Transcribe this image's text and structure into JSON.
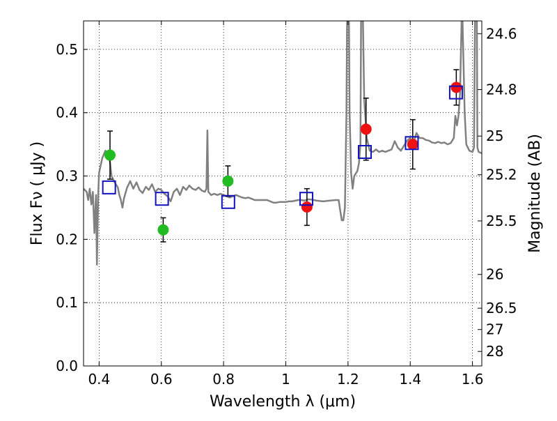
{
  "chart_data": {
    "type": "scatter",
    "title": "",
    "xlabel": "Wavelength  λ (μm)",
    "ylabel": "Flux  Fν  ( μJy )",
    "ylabel_right": "Magnitude (AB)",
    "xlim": [
      0.35,
      1.63
    ],
    "ylim": [
      0.0,
      0.545
    ],
    "x_ticks": [
      0.4,
      0.6,
      0.8,
      1.0,
      1.2,
      1.4,
      1.6
    ],
    "x_tick_labels": [
      "0.4",
      "0.6",
      "0.8",
      "1",
      "1.2",
      "1.4",
      "1.6"
    ],
    "y_ticks": [
      0.0,
      0.1,
      0.2,
      0.3,
      0.4,
      0.5
    ],
    "y_tick_labels": [
      "0.0",
      "0.1",
      "0.2",
      "0.3",
      "0.4",
      "0.5"
    ],
    "right_ticks": [
      {
        "mag": 24.6,
        "label": "24.6"
      },
      {
        "mag": 24.8,
        "label": "24.8"
      },
      {
        "mag": 25.0,
        "label": "25"
      },
      {
        "mag": 25.2,
        "label": "25.2"
      },
      {
        "mag": 25.5,
        "label": "25.5"
      },
      {
        "mag": 26.0,
        "label": "26"
      },
      {
        "mag": 26.5,
        "label": "26.5"
      },
      {
        "mag": 27.0,
        "label": "27"
      },
      {
        "mag": 28.0,
        "label": "28"
      }
    ],
    "grid": true,
    "colors": {
      "observed_optical": "#22bb22",
      "observed_nir": "#ee1111",
      "model": "#1111bb",
      "spectrum": "#808080",
      "errorbar": "#000000"
    },
    "series": [
      {
        "marker": "circle",
        "color": "#22bb22",
        "points": [
          {
            "x": 0.435,
            "y": 0.333,
            "err": 0.038
          },
          {
            "x": 0.606,
            "y": 0.215,
            "err": 0.019
          },
          {
            "x": 0.814,
            "y": 0.292,
            "err": 0.024
          }
        ]
      },
      {
        "marker": "circle",
        "color": "#ee1111",
        "points": [
          {
            "x": 1.068,
            "y": 0.251,
            "err": 0.029
          },
          {
            "x": 1.258,
            "y": 0.374,
            "err": 0.049
          },
          {
            "x": 1.408,
            "y": 0.35,
            "err": 0.039
          },
          {
            "x": 1.548,
            "y": 0.44,
            "err": 0.028
          }
        ]
      },
      {
        "marker": "open-square",
        "color": "#1111bb",
        "points": [
          {
            "x": 0.432,
            "y": 0.282
          },
          {
            "x": 0.602,
            "y": 0.264
          },
          {
            "x": 0.815,
            "y": 0.259
          },
          {
            "x": 1.066,
            "y": 0.264
          },
          {
            "x": 1.254,
            "y": 0.338
          },
          {
            "x": 1.405,
            "y": 0.352
          },
          {
            "x": 1.547,
            "y": 0.432
          }
        ]
      },
      {
        "marker": "line",
        "color": "#808080",
        "points": [
          [
            0.35,
            0.28
          ],
          [
            0.36,
            0.275
          ],
          [
            0.365,
            0.262
          ],
          [
            0.37,
            0.28
          ],
          [
            0.375,
            0.255
          ],
          [
            0.38,
            0.275
          ],
          [
            0.385,
            0.21
          ],
          [
            0.39,
            0.27
          ],
          [
            0.393,
            0.16
          ],
          [
            0.397,
            0.27
          ],
          [
            0.4,
            0.305
          ],
          [
            0.41,
            0.328
          ],
          [
            0.42,
            0.34
          ],
          [
            0.43,
            0.332
          ],
          [
            0.435,
            0.322
          ],
          [
            0.44,
            0.3
          ],
          [
            0.45,
            0.29
          ],
          [
            0.46,
            0.282
          ],
          [
            0.465,
            0.27
          ],
          [
            0.47,
            0.262
          ],
          [
            0.475,
            0.25
          ],
          [
            0.48,
            0.265
          ],
          [
            0.49,
            0.282
          ],
          [
            0.5,
            0.292
          ],
          [
            0.51,
            0.28
          ],
          [
            0.52,
            0.29
          ],
          [
            0.53,
            0.278
          ],
          [
            0.54,
            0.273
          ],
          [
            0.55,
            0.283
          ],
          [
            0.56,
            0.278
          ],
          [
            0.57,
            0.287
          ],
          [
            0.58,
            0.275
          ],
          [
            0.59,
            0.28
          ],
          [
            0.6,
            0.278
          ],
          [
            0.61,
            0.272
          ],
          [
            0.62,
            0.268
          ],
          [
            0.63,
            0.26
          ],
          [
            0.64,
            0.275
          ],
          [
            0.65,
            0.28
          ],
          [
            0.66,
            0.27
          ],
          [
            0.67,
            0.283
          ],
          [
            0.68,
            0.278
          ],
          [
            0.69,
            0.285
          ],
          [
            0.7,
            0.28
          ],
          [
            0.71,
            0.278
          ],
          [
            0.72,
            0.282
          ],
          [
            0.73,
            0.277
          ],
          [
            0.74,
            0.275
          ],
          [
            0.745,
            0.28
          ],
          [
            0.748,
            0.372
          ],
          [
            0.751,
            0.275
          ],
          [
            0.76,
            0.27
          ],
          [
            0.77,
            0.272
          ],
          [
            0.78,
            0.27
          ],
          [
            0.79,
            0.272
          ],
          [
            0.8,
            0.27
          ],
          [
            0.81,
            0.268
          ],
          [
            0.82,
            0.266
          ],
          [
            0.83,
            0.268
          ],
          [
            0.84,
            0.27
          ],
          [
            0.85,
            0.268
          ],
          [
            0.86,
            0.266
          ],
          [
            0.87,
            0.265
          ],
          [
            0.88,
            0.266
          ],
          [
            0.89,
            0.264
          ],
          [
            0.9,
            0.262
          ],
          [
            0.91,
            0.262
          ],
          [
            0.92,
            0.262
          ],
          [
            0.93,
            0.262
          ],
          [
            0.94,
            0.262
          ],
          [
            0.95,
            0.26
          ],
          [
            0.96,
            0.258
          ],
          [
            0.97,
            0.258
          ],
          [
            0.98,
            0.259
          ],
          [
            0.99,
            0.259
          ],
          [
            1.0,
            0.259
          ],
          [
            1.01,
            0.26
          ],
          [
            1.02,
            0.26
          ],
          [
            1.03,
            0.261
          ],
          [
            1.04,
            0.262
          ],
          [
            1.05,
            0.262
          ],
          [
            1.06,
            0.261
          ],
          [
            1.07,
            0.263
          ],
          [
            1.08,
            0.263
          ],
          [
            1.09,
            0.262
          ],
          [
            1.1,
            0.261
          ],
          [
            1.12,
            0.26
          ],
          [
            1.14,
            0.261
          ],
          [
            1.16,
            0.262
          ],
          [
            1.17,
            0.262
          ],
          [
            1.175,
            0.245
          ],
          [
            1.18,
            0.23
          ],
          [
            1.185,
            0.23
          ],
          [
            1.19,
            0.25
          ],
          [
            1.195,
            0.4
          ],
          [
            1.197,
            0.545
          ],
          [
            1.203,
            0.545
          ],
          [
            1.205,
            0.4
          ],
          [
            1.21,
            0.305
          ],
          [
            1.215,
            0.28
          ],
          [
            1.22,
            0.3
          ],
          [
            1.23,
            0.308
          ],
          [
            1.235,
            0.32
          ],
          [
            1.24,
            0.35
          ],
          [
            1.242,
            0.545
          ],
          [
            1.248,
            0.545
          ],
          [
            1.252,
            0.42
          ],
          [
            1.26,
            0.36
          ],
          [
            1.27,
            0.34
          ],
          [
            1.28,
            0.338
          ],
          [
            1.29,
            0.342
          ],
          [
            1.3,
            0.338
          ],
          [
            1.31,
            0.34
          ],
          [
            1.32,
            0.338
          ],
          [
            1.33,
            0.34
          ],
          [
            1.34,
            0.342
          ],
          [
            1.35,
            0.355
          ],
          [
            1.36,
            0.345
          ],
          [
            1.37,
            0.34
          ],
          [
            1.38,
            0.348
          ],
          [
            1.39,
            0.356
          ],
          [
            1.4,
            0.36
          ],
          [
            1.41,
            0.352
          ],
          [
            1.42,
            0.368
          ],
          [
            1.43,
            0.36
          ],
          [
            1.44,
            0.36
          ],
          [
            1.45,
            0.357
          ],
          [
            1.46,
            0.356
          ],
          [
            1.47,
            0.353
          ],
          [
            1.48,
            0.352
          ],
          [
            1.49,
            0.354
          ],
          [
            1.5,
            0.352
          ],
          [
            1.51,
            0.353
          ],
          [
            1.52,
            0.35
          ],
          [
            1.53,
            0.352
          ],
          [
            1.54,
            0.36
          ],
          [
            1.545,
            0.395
          ],
          [
            1.55,
            0.38
          ],
          [
            1.555,
            0.395
          ],
          [
            1.56,
            0.43
          ],
          [
            1.565,
            0.545
          ],
          [
            1.568,
            0.545
          ],
          [
            1.575,
            0.4
          ],
          [
            1.58,
            0.35
          ],
          [
            1.59,
            0.34
          ],
          [
            1.6,
            0.338
          ],
          [
            1.605,
            0.345
          ],
          [
            1.608,
            0.545
          ],
          [
            1.614,
            0.545
          ],
          [
            1.616,
            0.345
          ],
          [
            1.62,
            0.338
          ],
          [
            1.63,
            0.336
          ]
        ]
      }
    ]
  }
}
